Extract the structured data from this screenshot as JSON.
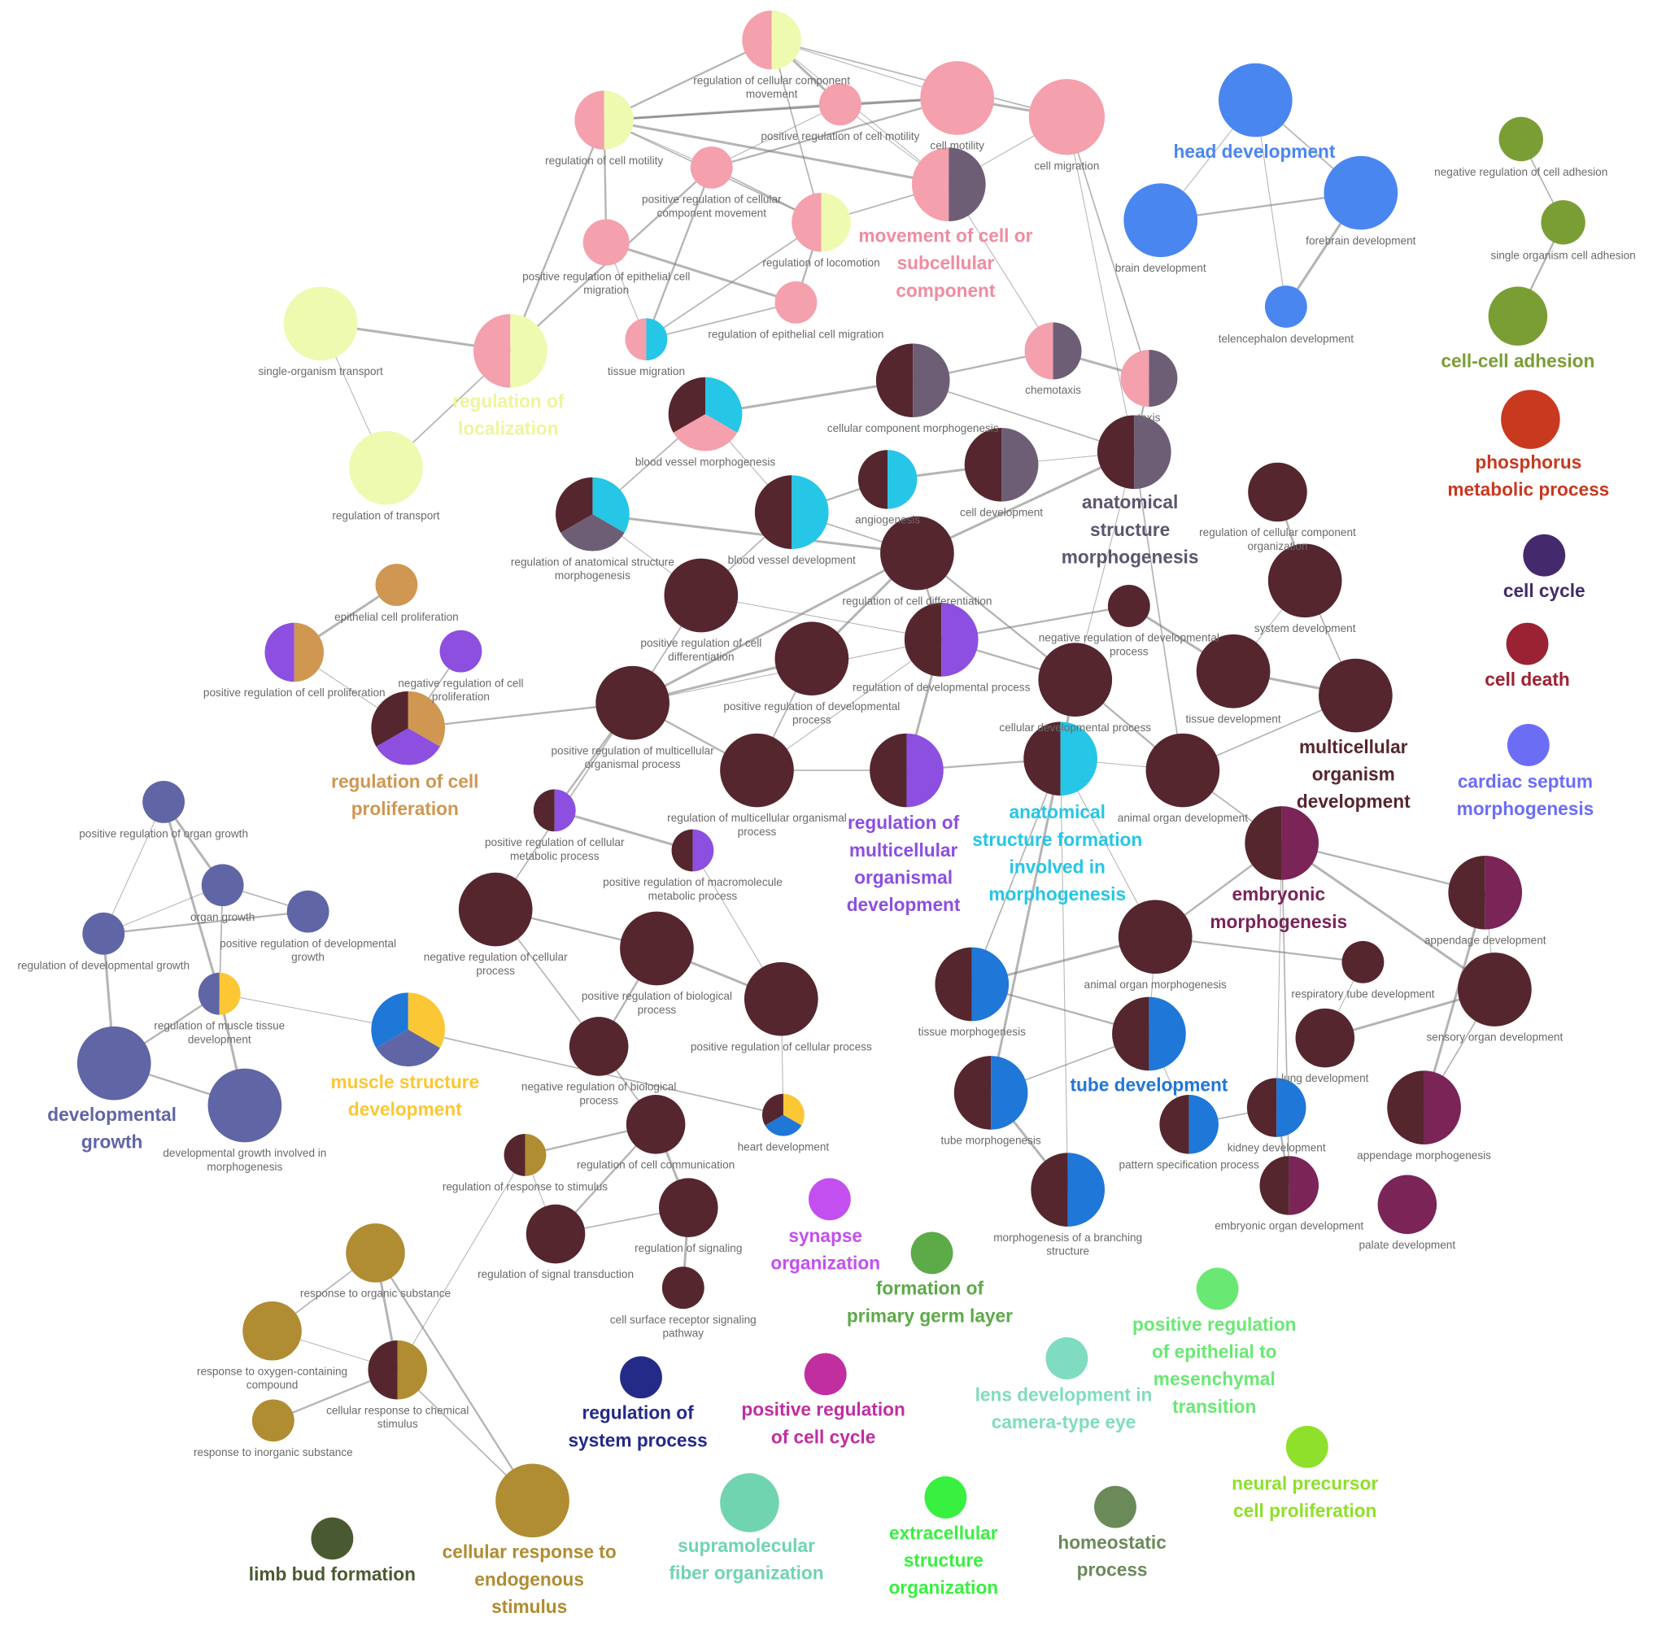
{
  "nodes": [
    {
      "label": [
        "regulation of cellular component",
        "movement"
      ],
      "colors": [
        "#f4a0ad",
        "#eefab0"
      ]
    },
    {
      "label": [
        "cell motility"
      ],
      "colors": [
        "#f4a0ad"
      ]
    },
    {
      "label": [
        "cell migration"
      ],
      "colors": [
        "#f4a0ad"
      ]
    },
    {
      "label": [
        "regulation of cell motility"
      ],
      "colors": [
        "#f4a0ad",
        "#eefab0"
      ]
    },
    {
      "label": [
        "positive regulation of cell motility"
      ],
      "colors": [
        "#f4a0ad"
      ]
    },
    {
      "label": [
        "positive regulation of cellular",
        "component movement"
      ],
      "colors": [
        "#f4a0ad"
      ]
    },
    {
      "label": [
        "movement of cell or",
        "subcellular",
        "component"
      ],
      "colors": [
        "#f4a0ad",
        "#6e5e75"
      ],
      "label_color": "#f08ca0"
    },
    {
      "label": [
        "regulation of locomotion"
      ],
      "colors": [
        "#f4a0ad",
        "#eefab0"
      ]
    },
    {
      "label": [
        "positive regulation of epithelial cell",
        "migration"
      ],
      "colors": [
        "#f4a0ad"
      ]
    },
    {
      "label": [
        "regulation of epithelial cell migration"
      ],
      "colors": [
        "#f4a0ad"
      ]
    },
    {
      "label": [
        "tissue migration"
      ],
      "colors": [
        "#f4a0ad",
        "#25c6e6"
      ]
    },
    {
      "label": [
        "regulation of",
        "localization"
      ],
      "colors": [
        "#f4a0ad",
        "#eefab0"
      ],
      "label_color": "#eef59a"
    },
    {
      "label": [
        "single-organism transport"
      ],
      "colors": [
        "#eefab0"
      ]
    },
    {
      "label": [
        "regulation of transport"
      ],
      "colors": [
        "#eefab0"
      ]
    },
    {
      "label": [
        "chemotaxis"
      ],
      "colors": [
        "#f4a0ad",
        "#6e5e75"
      ]
    },
    {
      "label": [
        "taxis"
      ],
      "colors": [
        "#f4a0ad",
        "#6e5e75"
      ]
    },
    {
      "label": [
        "cellular component morphogenesis"
      ],
      "colors": [
        "#55262e",
        "#6e5e75"
      ]
    },
    {
      "label": [
        "blood vessel morphogenesis"
      ],
      "colors": [
        "#25c6e6",
        "#f4a0ad",
        "#55262e"
      ]
    },
    {
      "label": [
        "cell development"
      ],
      "colors": [
        "#55262e",
        "#6e5e75"
      ]
    },
    {
      "label": [
        "anatomical",
        "structure",
        "morphogenesis"
      ],
      "colors": [
        "#55262e",
        "#6e5e75"
      ],
      "label_color": "#5e5570"
    },
    {
      "label": [
        "angiogenesis"
      ],
      "colors": [
        "#55262e",
        "#25c6e6"
      ]
    },
    {
      "label": [
        "blood vessel development"
      ],
      "colors": [
        "#55262e",
        "#25c6e6"
      ]
    },
    {
      "label": [
        "regulation of anatomical structure",
        "morphogenesis"
      ],
      "colors": [
        "#25c6e6",
        "#6e5e75",
        "#55262e"
      ]
    },
    {
      "label": [
        "regulation of cellular component",
        "organization"
      ],
      "colors": [
        "#55262e"
      ]
    },
    {
      "label": [
        "regulation of cell differentiation"
      ],
      "colors": [
        "#55262e"
      ]
    },
    {
      "label": [
        "system development"
      ],
      "colors": [
        "#55262e"
      ]
    },
    {
      "label": [
        "positive regulation of cell",
        "differentiation"
      ],
      "colors": [
        "#55262e"
      ]
    },
    {
      "label": [
        "negative regulation of developmental",
        "process"
      ],
      "colors": [
        "#55262e"
      ]
    },
    {
      "label": [
        "regulation of developmental process"
      ],
      "colors": [
        "#55262e",
        "#8c4fe0"
      ]
    },
    {
      "label": [
        "positive regulation of developmental",
        "process"
      ],
      "colors": [
        "#55262e"
      ]
    },
    {
      "label": [
        "positive regulation of multicellular",
        "organismal process"
      ],
      "colors": [
        "#55262e"
      ]
    },
    {
      "label": [
        "cellular developmental process"
      ],
      "colors": [
        "#55262e"
      ]
    },
    {
      "label": [
        "tissue development"
      ],
      "colors": [
        "#55262e"
      ]
    },
    {
      "label": [
        "multicellular",
        "organism",
        "development"
      ],
      "colors": [
        "#55262e"
      ],
      "label_color": "#55262e"
    },
    {
      "label": [
        "regulation of multicellular organismal",
        "process"
      ],
      "colors": [
        "#55262e"
      ]
    },
    {
      "label": [
        "regulation of",
        "multicellular",
        "organismal",
        "development"
      ],
      "colors": [
        "#55262e",
        "#8c4fe0"
      ],
      "label_color": "#8c4fe0"
    },
    {
      "label": [
        "anatomical",
        "structure formation",
        "involved in",
        "morphogenesis"
      ],
      "colors": [
        "#55262e",
        "#25c6e6"
      ],
      "label_color": "#25c6e6"
    },
    {
      "label": [
        "animal organ development"
      ],
      "colors": [
        "#55262e"
      ]
    },
    {
      "label": [
        "embryonic",
        "morphogenesis"
      ],
      "colors": [
        "#55262e",
        "#7a2458"
      ],
      "label_color": "#7a2458"
    },
    {
      "label": [
        "positive regulation of cellular",
        "metabolic process"
      ],
      "colors": [
        "#55262e",
        "#8c4fe0"
      ]
    },
    {
      "label": [
        "positive regulation of macromolecule",
        "metabolic process"
      ],
      "colors": [
        "#55262e",
        "#8c4fe0"
      ]
    },
    {
      "label": [
        "negative regulation of cellular",
        "process"
      ],
      "colors": [
        "#55262e"
      ]
    },
    {
      "label": [
        "positive regulation of biological",
        "process"
      ],
      "colors": [
        "#55262e"
      ]
    },
    {
      "label": [
        "positive regulation of cellular process"
      ],
      "colors": [
        "#55262e"
      ]
    },
    {
      "label": [
        "animal organ morphogenesis"
      ],
      "colors": [
        "#55262e"
      ]
    },
    {
      "label": [
        "appendage development"
      ],
      "colors": [
        "#55262e",
        "#7a2458"
      ]
    },
    {
      "label": [
        "respiratory tube development"
      ],
      "colors": [
        "#55262e"
      ]
    },
    {
      "label": [
        "sensory organ development"
      ],
      "colors": [
        "#55262e"
      ]
    },
    {
      "label": [
        "tissue morphogenesis"
      ],
      "colors": [
        "#55262e",
        "#1f77d8"
      ]
    },
    {
      "label": [
        "tube development"
      ],
      "colors": [
        "#55262e",
        "#1f77d8"
      ],
      "label_color": "#1f77d8"
    },
    {
      "label": [
        "lung development"
      ],
      "colors": [
        "#55262e"
      ]
    },
    {
      "label": [
        "negative regulation of biological",
        "process"
      ],
      "colors": [
        "#55262e"
      ]
    },
    {
      "label": [
        "tube morphogenesis"
      ],
      "colors": [
        "#55262e",
        "#1f77d8"
      ]
    },
    {
      "label": [
        "pattern specification process"
      ],
      "colors": [
        "#55262e",
        "#1f77d8"
      ]
    },
    {
      "label": [
        "kidney development"
      ],
      "colors": [
        "#55262e",
        "#1f77d8"
      ]
    },
    {
      "label": [
        "appendage morphogenesis"
      ],
      "colors": [
        "#55262e",
        "#7a2458"
      ]
    },
    {
      "label": [
        "regulation of cell communication"
      ],
      "colors": [
        "#55262e"
      ]
    },
    {
      "label": [
        "heart development"
      ],
      "colors": [
        "#fbc734",
        "#1f77d8",
        "#55262e"
      ]
    },
    {
      "label": [
        "regulation of response to stimulus"
      ],
      "colors": [
        "#55262e",
        "#b08c32"
      ]
    },
    {
      "label": [
        "morphogenesis of a branching",
        "structure"
      ],
      "colors": [
        "#55262e",
        "#1f77d8"
      ]
    },
    {
      "label": [
        "embryonic organ development"
      ],
      "colors": [
        "#55262e",
        "#7a2458"
      ]
    },
    {
      "label": [
        "palate development"
      ],
      "colors": [
        "#7a2458"
      ]
    },
    {
      "label": [
        "regulation of signaling"
      ],
      "colors": [
        "#55262e"
      ]
    },
    {
      "label": [
        "regulation of signal transduction"
      ],
      "colors": [
        "#55262e"
      ]
    },
    {
      "label": [
        "cell surface receptor signaling",
        "pathway"
      ],
      "colors": [
        "#55262e"
      ]
    },
    {
      "label": [
        "head development"
      ],
      "colors": [
        "#4a86f0"
      ],
      "label_color": "#4a86f0"
    },
    {
      "label": [
        "brain development"
      ],
      "colors": [
        "#4a86f0"
      ]
    },
    {
      "label": [
        "forebrain development"
      ],
      "colors": [
        "#4a86f0"
      ]
    },
    {
      "label": [
        "telencephalon development"
      ],
      "colors": [
        "#4a86f0"
      ]
    },
    {
      "label": [
        "negative regulation of cell adhesion"
      ],
      "colors": [
        "#7a9e34"
      ]
    },
    {
      "label": [
        "single organism cell adhesion"
      ],
      "colors": [
        "#7a9e34"
      ]
    },
    {
      "label": [
        "cell-cell adhesion"
      ],
      "colors": [
        "#7a9e34"
      ],
      "label_color": "#7a9e34"
    },
    {
      "label": [
        "phosphorus",
        "metabolic process"
      ],
      "colors": [
        "#c8391f"
      ],
      "label_color": "#c8391f"
    },
    {
      "label": [
        "cell cycle"
      ],
      "colors": [
        "#45296d"
      ],
      "label_color": "#45296d"
    },
    {
      "label": [
        "cell death"
      ],
      "colors": [
        "#9b2232"
      ],
      "label_color": "#9b2232"
    },
    {
      "label": [
        "cardiac septum",
        "morphogenesis"
      ],
      "colors": [
        "#6b6ef5"
      ],
      "label_color": "#6b6ef5"
    },
    {
      "label": [
        "epithelial cell proliferation"
      ],
      "colors": [
        "#cf9752"
      ]
    },
    {
      "label": [
        "positive regulation of cell proliferation"
      ],
      "colors": [
        "#8c4fe0",
        "#cf9752"
      ]
    },
    {
      "label": [
        "negative regulation of cell",
        "proliferation"
      ],
      "colors": [
        "#8c4fe0"
      ]
    },
    {
      "label": [
        "regulation of cell",
        "proliferation"
      ],
      "colors": [
        "#cf9752",
        "#8c4fe0",
        "#55262e"
      ],
      "label_color": "#cf9752"
    },
    {
      "label": [
        "positive regulation of organ growth"
      ],
      "colors": [
        "#6065a6"
      ]
    },
    {
      "label": [
        "organ growth"
      ],
      "colors": [
        "#6065a6"
      ]
    },
    {
      "label": [
        "positive regulation of developmental",
        "growth"
      ],
      "colors": [
        "#6065a6"
      ]
    },
    {
      "label": [
        "regulation of developmental growth"
      ],
      "colors": [
        "#6065a6"
      ]
    },
    {
      "label": [
        "regulation of muscle tissue",
        "development"
      ],
      "colors": [
        "#6065a6",
        "#fbc734"
      ]
    },
    {
      "label": [
        "developmental",
        "growth"
      ],
      "colors": [
        "#6065a6"
      ],
      "label_color": "#6065a6"
    },
    {
      "label": [
        "developmental growth involved in",
        "morphogenesis"
      ],
      "colors": [
        "#6065a6"
      ]
    },
    {
      "label": [
        "muscle structure",
        "development"
      ],
      "colors": [
        "#fbc734",
        "#6065a6",
        "#1f77d8"
      ],
      "label_color": "#fbc734"
    },
    {
      "label": [
        "response to organic substance"
      ],
      "colors": [
        "#b08c32"
      ]
    },
    {
      "label": [
        "response to oxygen-containing",
        "compound"
      ],
      "colors": [
        "#b08c32"
      ]
    },
    {
      "label": [
        "cellular response to chemical",
        "stimulus"
      ],
      "colors": [
        "#55262e",
        "#b08c32"
      ]
    },
    {
      "label": [
        "response to inorganic substance"
      ],
      "colors": [
        "#b08c32"
      ]
    },
    {
      "label": [
        "cellular response to",
        "endogenous",
        "stimulus"
      ],
      "colors": [
        "#b08c32"
      ],
      "label_color": "#b08c32"
    },
    {
      "label": [
        "limb bud formation"
      ],
      "colors": [
        "#4a5a30"
      ],
      "label_color": "#4a5a30"
    },
    {
      "label": [
        "synapse",
        "organization"
      ],
      "colors": [
        "#c44ff0"
      ],
      "label_color": "#c44ff0"
    },
    {
      "label": [
        "formation of",
        "primary germ layer"
      ],
      "colors": [
        "#5caa48"
      ],
      "label_color": "#5caa48"
    },
    {
      "label": [
        "positive regulation",
        "of epithelial to",
        "mesenchymal",
        "transition"
      ],
      "colors": [
        "#6ae874"
      ],
      "label_color": "#6ae874"
    },
    {
      "label": [
        "lens development in",
        "camera-type eye"
      ],
      "colors": [
        "#80dcc0"
      ],
      "label_color": "#80dcc0"
    },
    {
      "label": [
        "regulation of",
        "system process"
      ],
      "colors": [
        "#242a88"
      ],
      "label_color": "#242a88"
    },
    {
      "label": [
        "positive regulation",
        "of cell cycle"
      ],
      "colors": [
        "#c02ea0"
      ],
      "label_color": "#c02ea0"
    },
    {
      "label": [
        "neural precursor",
        "cell proliferation"
      ],
      "colors": [
        "#8ee02a"
      ],
      "label_color": "#8ee02a"
    },
    {
      "label": [
        "supramolecular",
        "fiber organization"
      ],
      "colors": [
        "#70d4b0"
      ],
      "label_color": "#70d4b0"
    },
    {
      "label": [
        "extracellular",
        "structure",
        "organization"
      ],
      "colors": [
        "#38f040"
      ],
      "label_color": "#38f040"
    },
    {
      "label": [
        "homeostatic",
        "process"
      ],
      "colors": [
        "#6a8a5a"
      ],
      "label_color": "#6a8a5a"
    }
  ]
}
